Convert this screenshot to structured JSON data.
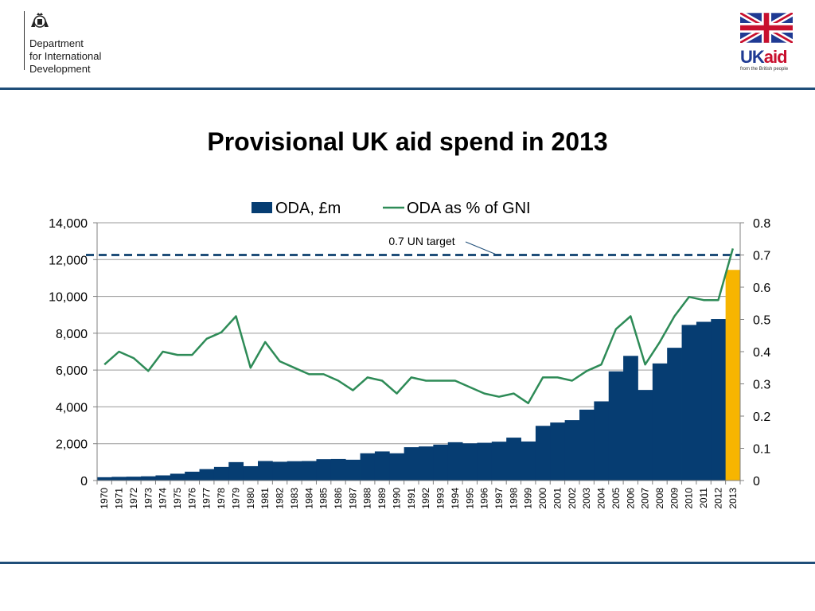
{
  "header": {
    "org_lines": [
      "Department",
      "for International",
      "Development"
    ],
    "ukaid_uk": "UK",
    "ukaid_aid": "aid",
    "ukaid_tagline": "from the British people"
  },
  "colors": {
    "bar": "#063d72",
    "bar_highlight": "#f7b500",
    "line": "#2e8b57",
    "target": "#1f4e79",
    "rule": "#1f4e79"
  },
  "icons": {
    "crest": "royal-crest-icon",
    "flag": "union-flag-icon"
  },
  "chart_data": {
    "type": "bar+line",
    "title": "Provisional UK aid spend in 2013",
    "categories": [
      "1970",
      "1971",
      "1972",
      "1973",
      "1974",
      "1975",
      "1976",
      "1977",
      "1978",
      "1979",
      "1980",
      "1981",
      "1982",
      "1983",
      "1984",
      "1985",
      "1986",
      "1987",
      "1988",
      "1989",
      "1990",
      "1991",
      "1992",
      "1993",
      "1994",
      "1995",
      "1996",
      "1997",
      "1998",
      "1999",
      "2000",
      "2001",
      "2002",
      "2003",
      "2004",
      "2005",
      "2006",
      "2007",
      "2008",
      "2009",
      "2010",
      "2011",
      "2012",
      "2013"
    ],
    "series": [
      {
        "name": "ODA, £m",
        "axis": "left",
        "type": "bar",
        "values": [
          180,
          200,
          210,
          230,
          280,
          370,
          480,
          620,
          740,
          1000,
          780,
          1060,
          1020,
          1050,
          1060,
          1160,
          1170,
          1130,
          1480,
          1580,
          1480,
          1810,
          1850,
          1950,
          2080,
          2020,
          2050,
          2110,
          2330,
          2120,
          2970,
          3150,
          3280,
          3850,
          4300,
          5930,
          6770,
          4920,
          6360,
          7210,
          8450,
          8620,
          8770,
          11440
        ],
        "highlight_index": 43
      },
      {
        "name": "ODA as % of GNI",
        "axis": "right",
        "type": "line",
        "values": [
          0.36,
          0.4,
          0.38,
          0.34,
          0.4,
          0.39,
          0.39,
          0.44,
          0.46,
          0.51,
          0.35,
          0.43,
          0.37,
          0.35,
          0.33,
          0.33,
          0.31,
          0.28,
          0.32,
          0.31,
          0.27,
          0.32,
          0.31,
          0.31,
          0.31,
          0.29,
          0.27,
          0.26,
          0.27,
          0.24,
          0.32,
          0.32,
          0.31,
          0.34,
          0.36,
          0.47,
          0.51,
          0.36,
          0.43,
          0.51,
          0.57,
          0.56,
          0.56,
          0.72
        ]
      }
    ],
    "ylim_left": [
      0,
      14000
    ],
    "yticks_left": [
      "0",
      "2,000",
      "4,000",
      "6,000",
      "8,000",
      "10,000",
      "12,000",
      "14,000"
    ],
    "ylim_right": [
      0,
      0.8
    ],
    "yticks_right": [
      "0",
      "0.1",
      "0.2",
      "0.3",
      "0.4",
      "0.5",
      "0.6",
      "0.7",
      "0.8"
    ],
    "reference_line": {
      "value": 0.7,
      "axis": "right",
      "label": "0.7 UN target"
    },
    "legend_position": "top",
    "grid": true
  }
}
